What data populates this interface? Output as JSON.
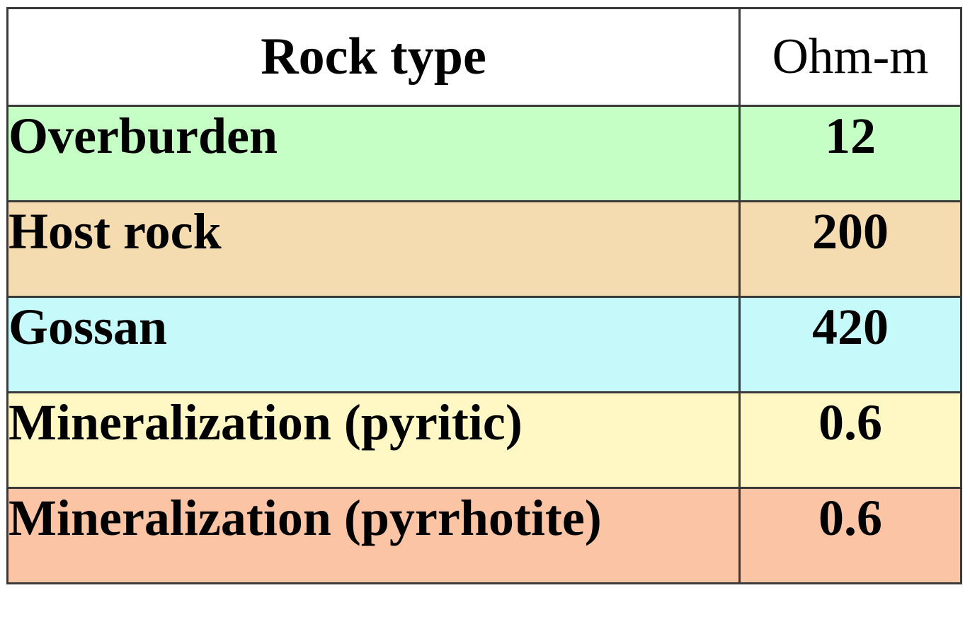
{
  "table": {
    "headers": {
      "rock_type": "Rock type",
      "unit": "Ohm-m"
    },
    "rows": [
      {
        "rock": "Overburden",
        "value": "12",
        "color": "#c6ffc6"
      },
      {
        "rock": "Host rock",
        "value": "200",
        "color": "#f5dbb0"
      },
      {
        "rock": "Gossan",
        "value": "420",
        "color": "#c6fafa"
      },
      {
        "rock": "Mineralization (pyritic)",
        "value": "0.6",
        "color": "#fff8c4"
      },
      {
        "rock": "Mineralization (pyrrhotite)",
        "value": "0.6",
        "color": "#fbc4a4"
      }
    ]
  }
}
